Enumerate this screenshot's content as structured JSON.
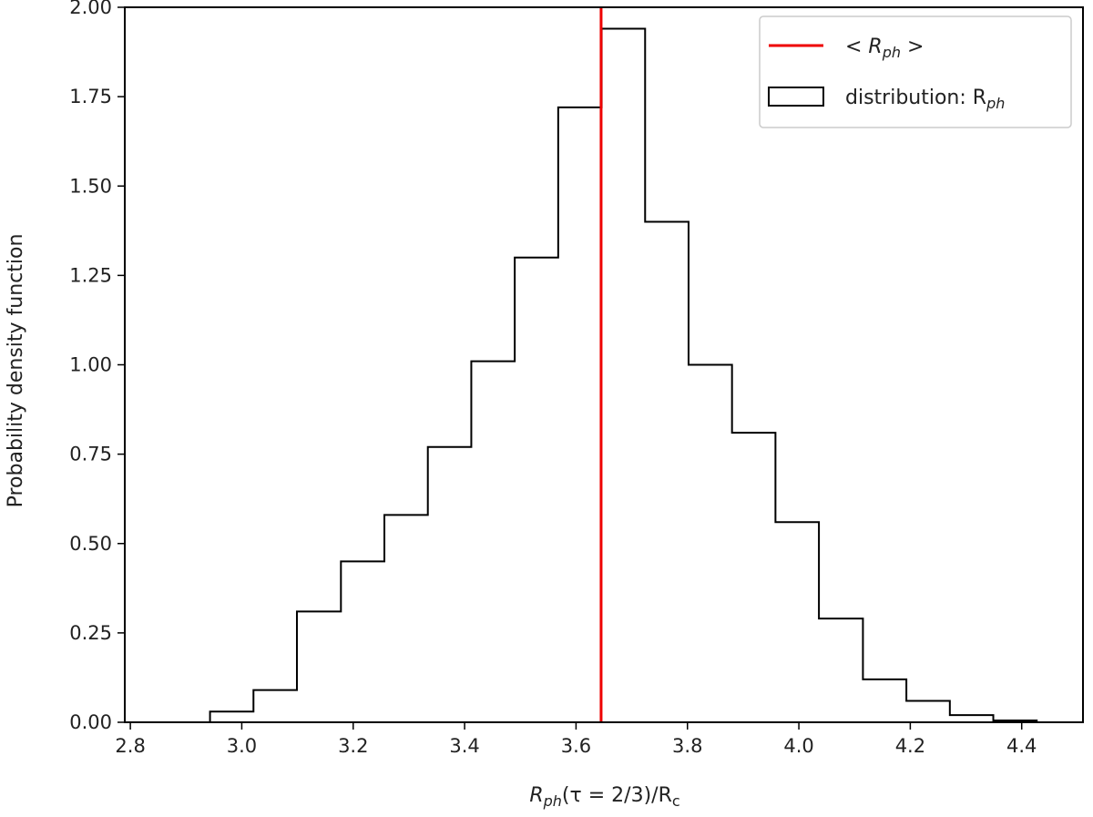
{
  "chart_data": {
    "type": "histogram",
    "title": "",
    "xlabel": {
      "R": "R",
      "sub": "ph",
      "rest": "(τ = 2/3)/R",
      "sub2": "c"
    },
    "ylabel": "Probability density function",
    "xlim": [
      2.79,
      4.51
    ],
    "ylim": [
      0.0,
      2.0
    ],
    "xticks": [
      2.8,
      3.0,
      3.2,
      3.4,
      3.6,
      3.8,
      4.0,
      4.2,
      4.4
    ],
    "xtick_labels": [
      "2.8",
      "3.0",
      "3.2",
      "3.4",
      "3.6",
      "3.8",
      "4.0",
      "4.2",
      "4.4"
    ],
    "yticks": [
      0.0,
      0.25,
      0.5,
      0.75,
      1.0,
      1.25,
      1.5,
      1.75,
      2.0
    ],
    "ytick_labels": [
      "0.00",
      "0.25",
      "0.50",
      "0.75",
      "1.00",
      "1.25",
      "1.50",
      "1.75",
      "2.00"
    ],
    "bin_edges": [
      2.865,
      2.943,
      3.021,
      3.099,
      3.178,
      3.256,
      3.334,
      3.412,
      3.49,
      3.568,
      3.646,
      3.724,
      3.802,
      3.88,
      3.958,
      4.036,
      4.115,
      4.193,
      4.271,
      4.349,
      4.427
    ],
    "densities": [
      0.0,
      0.03,
      0.09,
      0.31,
      0.45,
      0.58,
      0.77,
      1.01,
      1.3,
      1.72,
      1.94,
      1.4,
      1.0,
      0.81,
      0.56,
      0.29,
      0.12,
      0.06,
      0.02,
      0.005
    ],
    "mean_line": {
      "x": 3.645,
      "color": "#ee0000"
    },
    "histogram_color": "#000000",
    "legend": {
      "placement": "upper right",
      "entries": [
        {
          "type": "line",
          "prefix": "< R",
          "sub": "ph",
          "suffix": " >",
          "color": "#ee0000"
        },
        {
          "type": "patch",
          "prefix": "distribution: R",
          "sub": "ph",
          "suffix": "",
          "color": "#000000"
        }
      ]
    },
    "grid": false
  }
}
